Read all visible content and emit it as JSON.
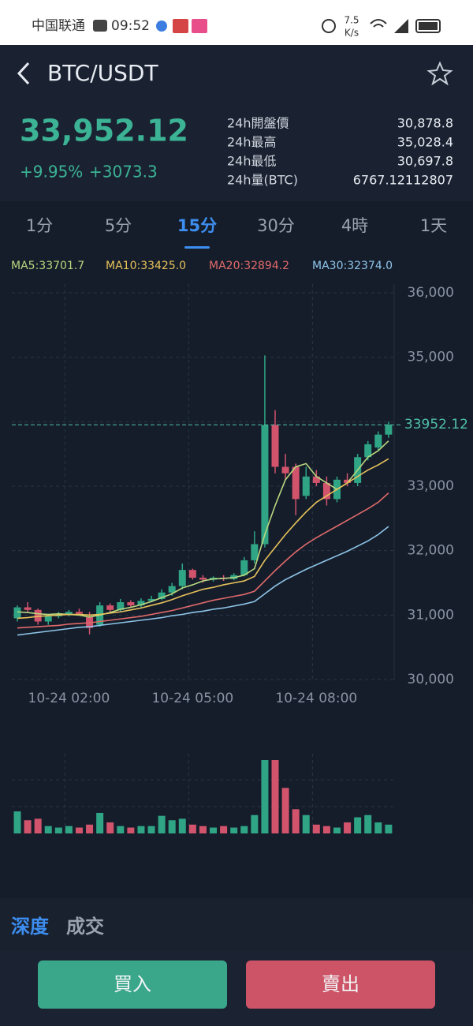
{
  "status_bar": {
    "carrier": "中国联通",
    "time": "09:52",
    "speed": "7.5",
    "speed_unit": "K/s"
  },
  "header": {
    "pair": "BTC/USDT"
  },
  "ticker": {
    "price": "33,952.12",
    "change_pct": "+9.95%",
    "change": "+3073.3",
    "stats": [
      [
        "24h開盤價",
        "30,878.8"
      ],
      [
        "24h最高",
        "35,028.4"
      ],
      [
        "24h最低",
        "30,697.8"
      ],
      [
        "24h量(BTC)",
        "6767.12112807"
      ]
    ]
  },
  "tabs": {
    "items": [
      "1分",
      "5分",
      "15分",
      "30分",
      "4時",
      "1天"
    ],
    "active": 2
  },
  "chart_data": {
    "type": "candlestick",
    "categories": [
      null,
      null,
      null,
      null,
      null,
      "10-24 02:00",
      null,
      null,
      null,
      null,
      null,
      null,
      null,
      null,
      null,
      null,
      null,
      "10-24 05:00",
      null,
      null,
      null,
      null,
      null,
      null,
      null,
      null,
      null,
      null,
      null,
      "10-24 08:00",
      null,
      null,
      null,
      null,
      null,
      null,
      null
    ],
    "open": [
      30950,
      31120,
      31080,
      30900,
      30980,
      31000,
      31050,
      30980,
      30850,
      31150,
      31080,
      31200,
      31150,
      31220,
      31250,
      31350,
      31450,
      31700,
      31580,
      31550,
      31580,
      31560,
      31620,
      31850,
      32100,
      33950,
      33300,
      33300,
      32850,
      33150,
      33050,
      32800,
      33100,
      33050,
      33450,
      33600,
      33800
    ],
    "high": [
      31150,
      31200,
      31100,
      31000,
      31050,
      31080,
      31100,
      31050,
      31200,
      31180,
      31250,
      31230,
      31260,
      31300,
      31400,
      31500,
      31800,
      31720,
      31620,
      31600,
      31620,
      31650,
      31900,
      32300,
      35028,
      34180,
      33500,
      33350,
      33300,
      33250,
      33150,
      33150,
      33200,
      33500,
      33700,
      33850,
      34000
    ],
    "low": [
      30900,
      31050,
      30850,
      30850,
      30950,
      30980,
      31000,
      30700,
      30820,
      31050,
      31060,
      31120,
      31120,
      31200,
      31230,
      31300,
      31400,
      31550,
      31500,
      31520,
      31530,
      31540,
      31600,
      31800,
      32050,
      33200,
      33100,
      32550,
      32800,
      33000,
      32700,
      32750,
      33000,
      33000,
      33400,
      33550,
      33750
    ],
    "close": [
      31120,
      31080,
      30900,
      30980,
      31000,
      31050,
      31020,
      30800,
      31150,
      31080,
      31200,
      31150,
      31220,
      31250,
      31350,
      31450,
      31700,
      31580,
      31550,
      31580,
      31560,
      31620,
      31850,
      32100,
      33950,
      33300,
      33200,
      32800,
      33150,
      33050,
      32800,
      33100,
      33050,
      33450,
      33650,
      33800,
      33952.12
    ],
    "volume": [
      30,
      18,
      20,
      10,
      8,
      10,
      8,
      12,
      28,
      15,
      10,
      8,
      10,
      10,
      24,
      18,
      20,
      12,
      10,
      8,
      10,
      8,
      10,
      25,
      100,
      100,
      62,
      33,
      25,
      12,
      10,
      8,
      15,
      22,
      25,
      15,
      12
    ],
    "series": [
      {
        "name": "MA5:33701.7",
        "color": "#b9d77f",
        "values": [
          31050,
          31040,
          31020,
          31010,
          31020,
          31010,
          31000,
          30970,
          31000,
          31040,
          31090,
          31120,
          31160,
          31210,
          31270,
          31330,
          31420,
          31470,
          31530,
          31560,
          31570,
          31580,
          31620,
          31720,
          32250,
          32700,
          33100,
          33300,
          33350,
          33150,
          33050,
          32950,
          33050,
          33250,
          33450,
          33550,
          33701.7
        ]
      },
      {
        "name": "MA10:33425.0",
        "color": "#e8c25a",
        "values": [
          30950,
          30960,
          30980,
          30990,
          31000,
          31010,
          31010,
          31000,
          31010,
          31030,
          31050,
          31080,
          31110,
          31150,
          31190,
          31240,
          31300,
          31350,
          31400,
          31430,
          31470,
          31500,
          31530,
          31600,
          31850,
          32050,
          32250,
          32430,
          32600,
          32750,
          32850,
          32950,
          33050,
          33150,
          33250,
          33330,
          33425
        ]
      },
      {
        "name": "MA20:32894.2",
        "color": "#e06a6a",
        "values": [
          30800,
          30810,
          30820,
          30830,
          30840,
          30860,
          30870,
          30880,
          30900,
          30920,
          30940,
          30960,
          30980,
          31010,
          31040,
          31070,
          31110,
          31150,
          31190,
          31230,
          31260,
          31290,
          31320,
          31370,
          31530,
          31690,
          31840,
          31980,
          32100,
          32200,
          32290,
          32380,
          32470,
          32560,
          32650,
          32750,
          32894.2
        ]
      },
      {
        "name": "MA30:32374.0",
        "color": "#8ec5e8",
        "values": [
          30690,
          30710,
          30730,
          30750,
          30770,
          30790,
          30810,
          30820,
          30840,
          30860,
          30880,
          30900,
          30920,
          30940,
          30960,
          30990,
          31010,
          31040,
          31060,
          31090,
          31110,
          31140,
          31170,
          31210,
          31330,
          31450,
          31550,
          31630,
          31710,
          31780,
          31850,
          31920,
          31990,
          32070,
          32150,
          32250,
          32374
        ]
      }
    ],
    "ylim": [
      30000,
      36000
    ],
    "yticks": [
      {
        "value": 30000,
        "label": "30,000"
      },
      {
        "value": 31000,
        "label": "31,000"
      },
      {
        "value": 32000,
        "label": "32,000"
      },
      {
        "value": 33000,
        "label": "33,000"
      },
      {
        "value": 34000,
        "label": "34,000"
      },
      {
        "value": 35000,
        "label": "35,000"
      },
      {
        "value": 36000,
        "label": "36,000"
      }
    ],
    "last_price": 33952.12,
    "up_color": "#2fa585",
    "down_color": "#d2536c",
    "grid": true
  },
  "bottom": {
    "tabs": [
      "深度",
      "成交"
    ],
    "buy": "買入",
    "sell": "賣出"
  }
}
